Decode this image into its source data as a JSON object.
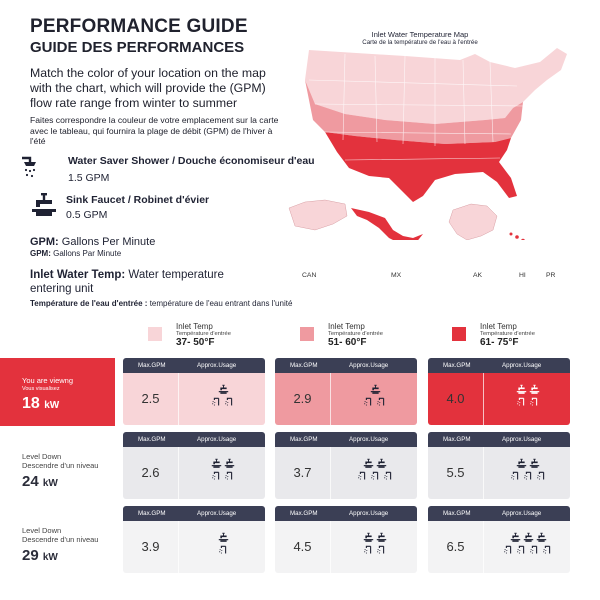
{
  "header": {
    "title": "PERFORMANCE GUIDE",
    "subtitle": "GUIDE DES PERFORMANCES"
  },
  "intro": {
    "en": "Match the color of your location on the map with the chart, which will provide the (GPM) flow rate range from winter to summer",
    "fr": "Faites correspondre la couleur de votre emplacement sur la carte avec le tableau, qui fournira la plage de débit (GPM) de l'hiver à l'été"
  },
  "fixtures": [
    {
      "title": "Water Saver Shower / Douche économiseur d'eau",
      "value": "1.5 GPM",
      "icon": "shower-icon"
    },
    {
      "title": "Sink Faucet / Robinet d'évier",
      "value": "0.5 GPM",
      "icon": "faucet-icon"
    }
  ],
  "gpm": {
    "label": "GPM:",
    "text": "Gallons Per Minute",
    "sub_label": "GPM:",
    "sub_text": "Gallons Par Minute"
  },
  "inlet": {
    "label": "Inlet Water Temp:",
    "text": "Water temperature entering unit",
    "sub_label": "Température de l'eau d'entrée :",
    "sub_text": "température de l'eau entrant dans l'unité"
  },
  "map": {
    "title": "Inlet Water Temperature Map",
    "subtitle": "Carte de la température de l'eau à l'entrée",
    "labels": {
      "can": "CAN",
      "mx": "MX",
      "ak": "AK",
      "hi": "HI",
      "pr": "PR"
    }
  },
  "colors": {
    "light": "#f8d5d8",
    "medium": "#ef9aa0",
    "dark": "#e3323d",
    "header": "#3b3f55",
    "grey1": "#e9e9ec",
    "grey2": "#f3f3f4"
  },
  "legend": [
    {
      "title": "Inlet Temp",
      "sub": "Température d'entrée",
      "range": "37- 50°F"
    },
    {
      "title": "Inlet Temp",
      "sub": "Température d'entrée",
      "range": "51- 60°F"
    },
    {
      "title": "Inlet Temp",
      "sub": "Température d'entrée",
      "range": "61- 75°F"
    }
  ],
  "table": {
    "col_max": "Max.GPM",
    "col_usage": "Approx.Usage",
    "rows": [
      {
        "label": "You are viewng",
        "sub": "Vous visualisez",
        "kw": "18",
        "unit": "kW",
        "values": [
          "2.5",
          "2.9",
          "4.0"
        ]
      },
      {
        "label": "Level  Down",
        "sub": "Descendre d'un niveau",
        "kw": "24",
        "unit": "kW",
        "values": [
          "2.6",
          "3.7",
          "5.5"
        ]
      },
      {
        "label": "Level Down",
        "sub": "Descendre d'un niveau",
        "kw": "29",
        "unit": "kW",
        "values": [
          "3.9",
          "4.5",
          "6.5"
        ]
      }
    ]
  }
}
